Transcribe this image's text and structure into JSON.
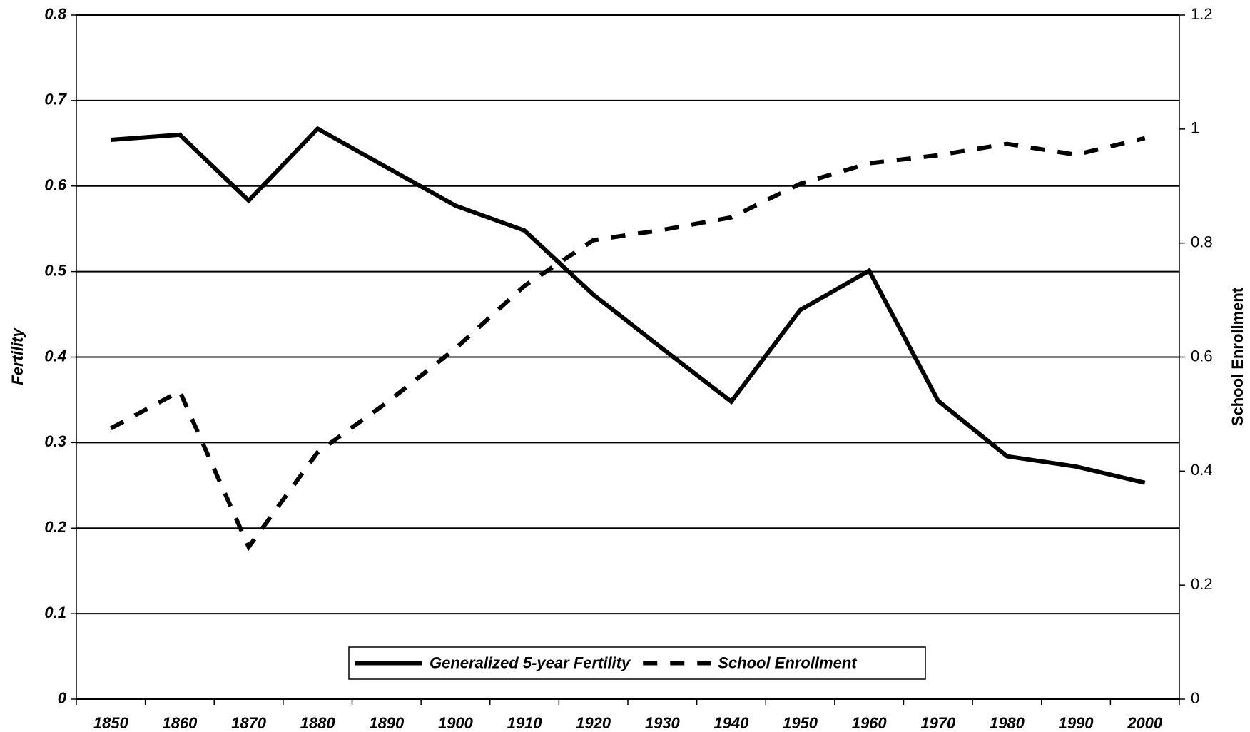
{
  "chart_data": {
    "type": "line",
    "y_label": "Fertility",
    "y2_label": "School Enrollment",
    "categories": [
      "1850",
      "1860",
      "1870",
      "1880",
      "1890",
      "1900",
      "1910",
      "1920",
      "1930",
      "1940",
      "1950",
      "1960",
      "1970",
      "1980",
      "1990",
      "2000"
    ],
    "series": [
      {
        "name": "Generalized 5-year Fertility",
        "color": "#000000",
        "line_style": "solid",
        "values": [
          0.654,
          0.66,
          0.583,
          0.667,
          0.622,
          0.577,
          0.548,
          0.473,
          0.41,
          0.348,
          0.455,
          0.501,
          0.349,
          0.284,
          0.272,
          0.253
        ]
      },
      {
        "name": "School Enrollment",
        "color": "#000000",
        "line_style": "dashed",
        "axis": "y2",
        "values": [
          0.475,
          0.54,
          0.267,
          0.433,
          0.52,
          0.615,
          0.725,
          0.805,
          0.823,
          0.845,
          0.904,
          0.94,
          0.954,
          0.974,
          0.955,
          0.984
        ]
      }
    ],
    "ylim": [
      0,
      0.8
    ],
    "yticks": [
      0,
      0.1,
      0.2,
      0.3,
      0.4,
      0.5,
      0.6,
      0.7,
      0.8
    ],
    "y2lim": [
      0,
      1.2
    ],
    "y2ticks": [
      0,
      0.2,
      0.4,
      0.6,
      0.8,
      1,
      1.2
    ],
    "grid": true,
    "legend": "bottom"
  }
}
